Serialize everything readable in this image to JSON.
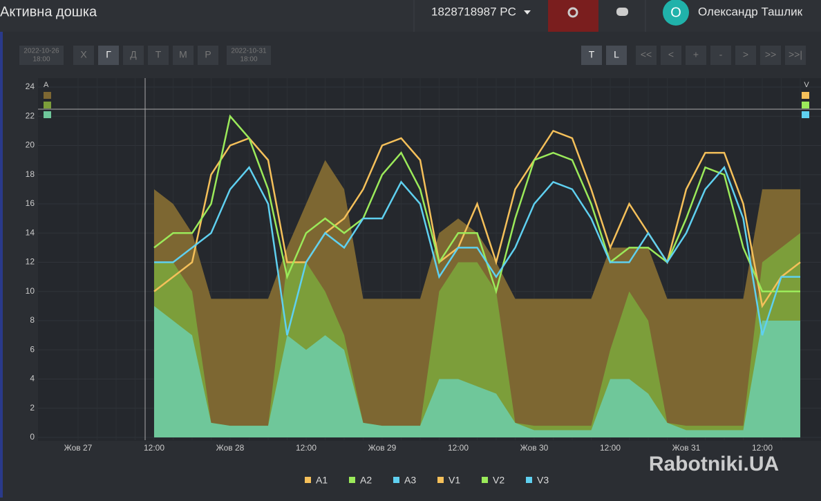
{
  "header": {
    "title": "Активна дошка",
    "device": "1828718987 PC",
    "avatar": "O",
    "user": "Олександр Ташлик"
  },
  "toolbar": {
    "start": {
      "date": "2022-10-26",
      "time": "18:00"
    },
    "periods": [
      "Х",
      "Г",
      "Д",
      "Т",
      "М",
      "Р"
    ],
    "end": {
      "date": "2022-10-31",
      "time": "18:00"
    },
    "modes": [
      "T",
      "L"
    ],
    "nav": [
      "<<",
      "<",
      "+",
      "-",
      ">",
      ">>",
      ">>|"
    ]
  },
  "watermark": "Rabotniki.UA",
  "chart_data": {
    "type": "line",
    "y_label": "A",
    "y2_label": "V",
    "grid": true,
    "ylim": [
      0,
      24
    ],
    "yticks": [
      0,
      2,
      4,
      6,
      8,
      10,
      12,
      14,
      16,
      18,
      20,
      22,
      24
    ],
    "categories": [
      "Жов 27",
      null,
      null,
      null,
      "12:00",
      null,
      null,
      null,
      "Жов 28",
      null,
      null,
      null,
      "12:00",
      null,
      null,
      null,
      "Жов 29",
      null,
      null,
      null,
      "12:00",
      null,
      null,
      null,
      "Жов 30",
      null,
      null,
      null,
      "12:00",
      null,
      null,
      null,
      "Жов 31",
      null,
      null,
      null,
      "12:00",
      null,
      null
    ],
    "series": [
      {
        "name": "A1",
        "style": "area",
        "color": "#f5c05a",
        "area_color": "#7d6732",
        "values": [
          null,
          null,
          null,
          null,
          17,
          16,
          14,
          9.5,
          9.5,
          9.5,
          9.5,
          13,
          16,
          19,
          17,
          9.5,
          9.5,
          9.5,
          9.5,
          14,
          15,
          14,
          12,
          9.5,
          9.5,
          9.5,
          9.5,
          9.5,
          13,
          13,
          13,
          9.5,
          9.5,
          9.5,
          9.5,
          9.5,
          17,
          17,
          17
        ]
      },
      {
        "name": "A2",
        "style": "area",
        "color": "#9bea5a",
        "area_color": "#7c9e3a",
        "values": [
          null,
          null,
          null,
          null,
          12,
          12,
          10,
          1,
          0.8,
          0.8,
          0.8,
          12,
          12,
          10,
          7,
          1,
          0.8,
          0.8,
          0.8,
          10,
          12,
          12,
          10,
          1,
          0.8,
          0.8,
          0.8,
          0.8,
          6,
          10,
          8,
          1,
          0.8,
          0.8,
          0.8,
          0.8,
          12,
          13,
          14
        ]
      },
      {
        "name": "A3",
        "style": "area",
        "color": "#5fd0f0",
        "area_color": "#6fc79a",
        "values": [
          null,
          null,
          null,
          null,
          9,
          8,
          7,
          1,
          0.8,
          0.8,
          0.8,
          7,
          6,
          7,
          6,
          1,
          0.8,
          0.8,
          0.8,
          4,
          4,
          3.5,
          3,
          1,
          0.5,
          0.5,
          0.5,
          0.5,
          4,
          4,
          3,
          1,
          0.5,
          0.5,
          0.5,
          0.5,
          8,
          8,
          8
        ]
      },
      {
        "name": "V1",
        "style": "line",
        "color": "#f5c05a",
        "values": [
          null,
          null,
          null,
          null,
          10,
          11,
          12,
          18,
          20,
          20.5,
          19,
          12,
          12,
          14,
          15,
          17,
          20,
          20.5,
          19,
          12,
          13,
          16,
          12,
          17,
          19,
          21,
          20.5,
          17,
          13,
          16,
          14,
          12,
          17,
          19.5,
          19.5,
          16,
          9,
          11,
          12
        ]
      },
      {
        "name": "V2",
        "style": "line",
        "color": "#9bea5a",
        "values": [
          null,
          null,
          null,
          null,
          13,
          14,
          14,
          16,
          22,
          20.5,
          17,
          11,
          14,
          15,
          14,
          15,
          18,
          19.5,
          17,
          12,
          14,
          14,
          10,
          15,
          19,
          19.5,
          19,
          16,
          12,
          13,
          13,
          12,
          15,
          18.5,
          18,
          13,
          10,
          10,
          10
        ]
      },
      {
        "name": "V3",
        "style": "line",
        "color": "#5fd0f0",
        "values": [
          null,
          null,
          null,
          null,
          12,
          12,
          13,
          14,
          17,
          18.5,
          16,
          7,
          12,
          14,
          13,
          15,
          15,
          17.5,
          16,
          11,
          13,
          13,
          11,
          13,
          16,
          17.5,
          17,
          15,
          12,
          12,
          14,
          12,
          14,
          17,
          18.5,
          15,
          7,
          11,
          11
        ]
      }
    ]
  }
}
